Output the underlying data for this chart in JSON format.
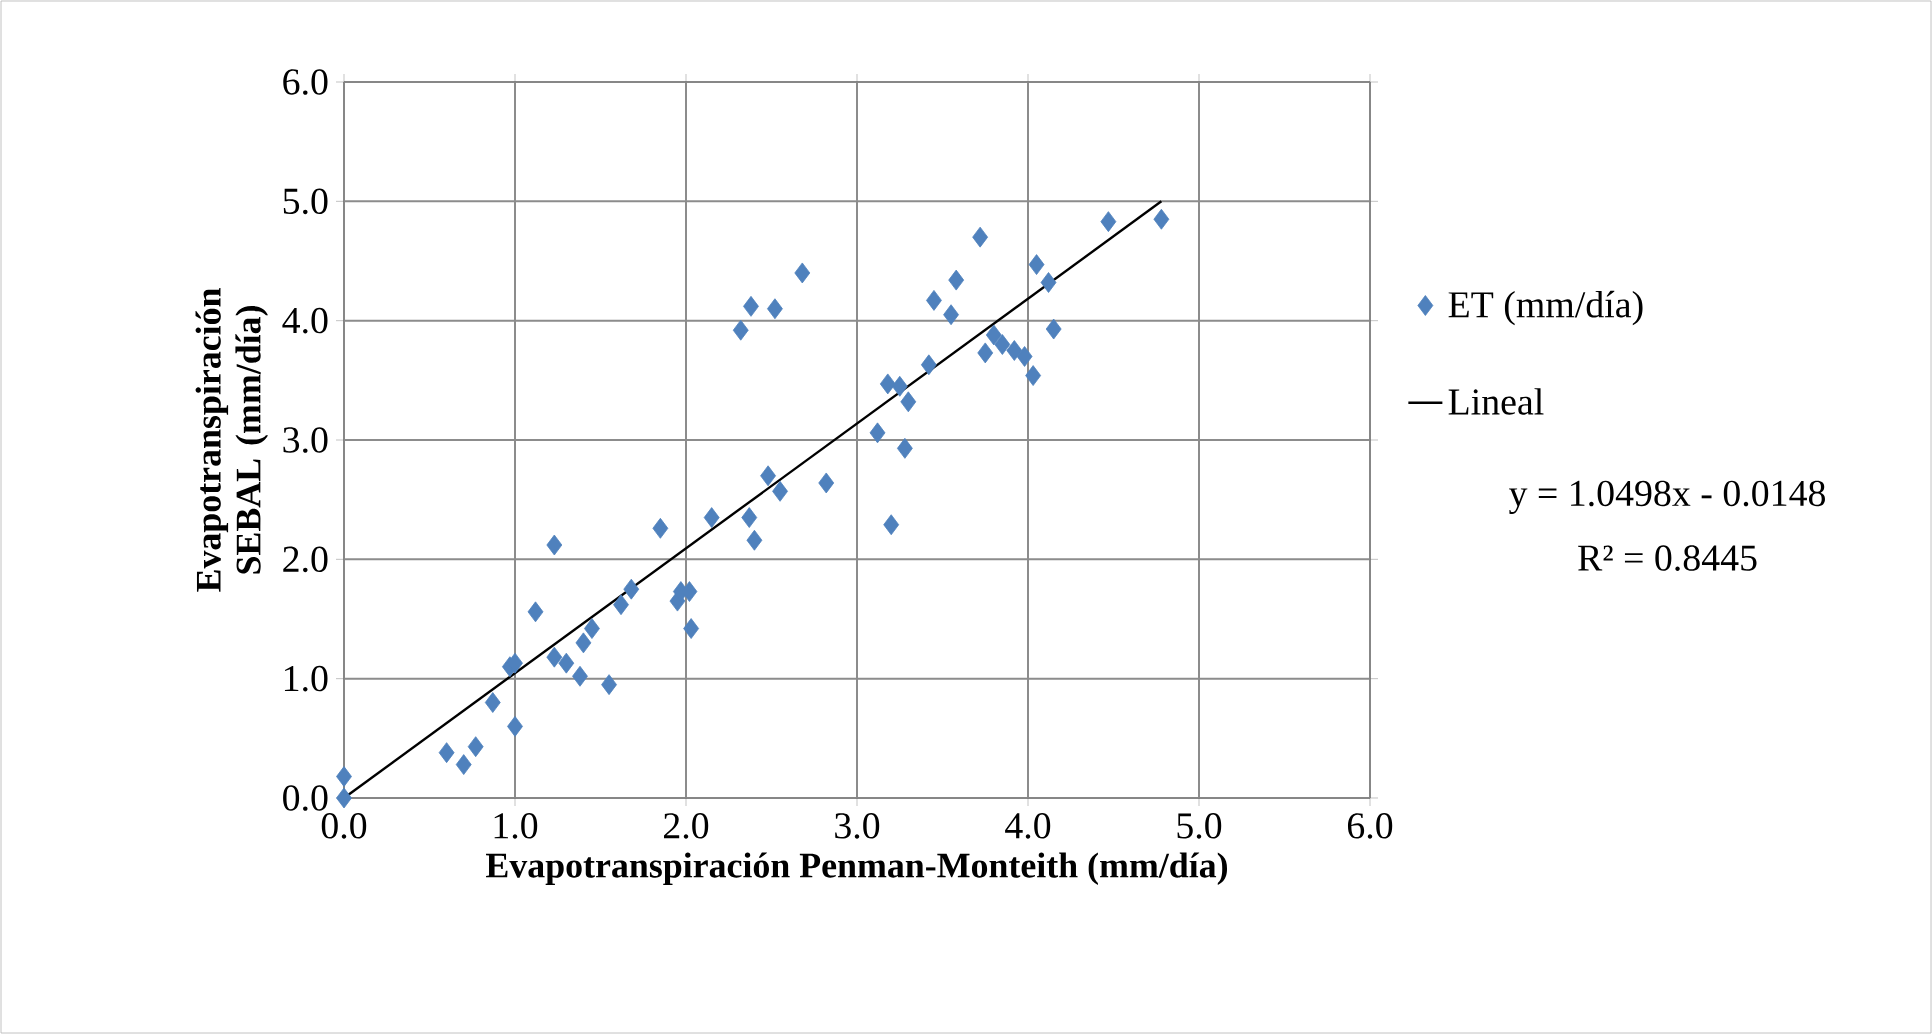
{
  "chart_data": {
    "type": "scatter",
    "xlabel": "Evapotranspiración Penman-Monteith   (mm/día)",
    "ylabel": "Evapotranspiración SEBAL (mm/día)",
    "xlim": [
      0,
      6
    ],
    "ylim": [
      0,
      6
    ],
    "xticks": [
      {
        "value": 0,
        "label": "0.0"
      },
      {
        "value": 1,
        "label": "1.0"
      },
      {
        "value": 2,
        "label": "2.0"
      },
      {
        "value": 3,
        "label": "3.0"
      },
      {
        "value": 4,
        "label": "4.0"
      },
      {
        "value": 5,
        "label": "5.0"
      },
      {
        "value": 6,
        "label": "6.0"
      }
    ],
    "yticks": [
      {
        "value": 0,
        "label": "0.0"
      },
      {
        "value": 1,
        "label": "1.0"
      },
      {
        "value": 2,
        "label": "2.0"
      },
      {
        "value": 3,
        "label": "3.0"
      },
      {
        "value": 4,
        "label": "4.0"
      },
      {
        "value": 5,
        "label": "5.0"
      },
      {
        "value": 6,
        "label": "6.0"
      }
    ],
    "grid": true,
    "legend": "right",
    "marker": "diamond",
    "series": [
      {
        "name": "ET (mm/día)",
        "color": "#4f81bd",
        "x": [
          0,
          0,
          0.6,
          0.7,
          0.77,
          0.87,
          0.97,
          1.0,
          1.0,
          1.12,
          1.23,
          1.23,
          1.3,
          1.38,
          1.4,
          1.45,
          1.55,
          1.62,
          1.68,
          1.85,
          1.95,
          1.97,
          2.02,
          2.03,
          2.15,
          2.32,
          2.37,
          2.38,
          2.4,
          2.48,
          2.52,
          2.55,
          2.68,
          2.82,
          3.12,
          3.18,
          3.2,
          3.25,
          3.28,
          3.3,
          3.42,
          3.45,
          3.55,
          3.58,
          3.72,
          3.75,
          3.8,
          3.85,
          3.92,
          3.98,
          4.03,
          4.05,
          4.12,
          4.15,
          4.47,
          4.78
        ],
        "values": [
          0.0,
          0.18,
          0.38,
          0.28,
          0.43,
          0.8,
          1.1,
          1.13,
          0.6,
          1.56,
          2.12,
          1.18,
          1.13,
          1.02,
          1.3,
          1.42,
          0.95,
          1.62,
          1.75,
          2.26,
          1.65,
          1.73,
          1.73,
          1.42,
          2.35,
          3.92,
          2.35,
          4.12,
          2.16,
          2.7,
          4.1,
          2.57,
          4.4,
          2.64,
          3.06,
          3.47,
          2.29,
          3.45,
          2.93,
          3.32,
          3.63,
          4.17,
          4.05,
          4.34,
          4.7,
          3.73,
          3.88,
          3.8,
          3.75,
          3.7,
          3.54,
          4.47,
          4.32,
          3.93,
          4.83,
          4.85
        ]
      },
      {
        "name": "Lineal",
        "type": "line",
        "color": "#000000",
        "marker": "none",
        "x": [
          0,
          4.78
        ],
        "values": [
          0.0,
          5.0
        ]
      }
    ],
    "annotations": [
      "y = 1.0498x - 0.0148",
      "R² = 0.8445"
    ]
  }
}
